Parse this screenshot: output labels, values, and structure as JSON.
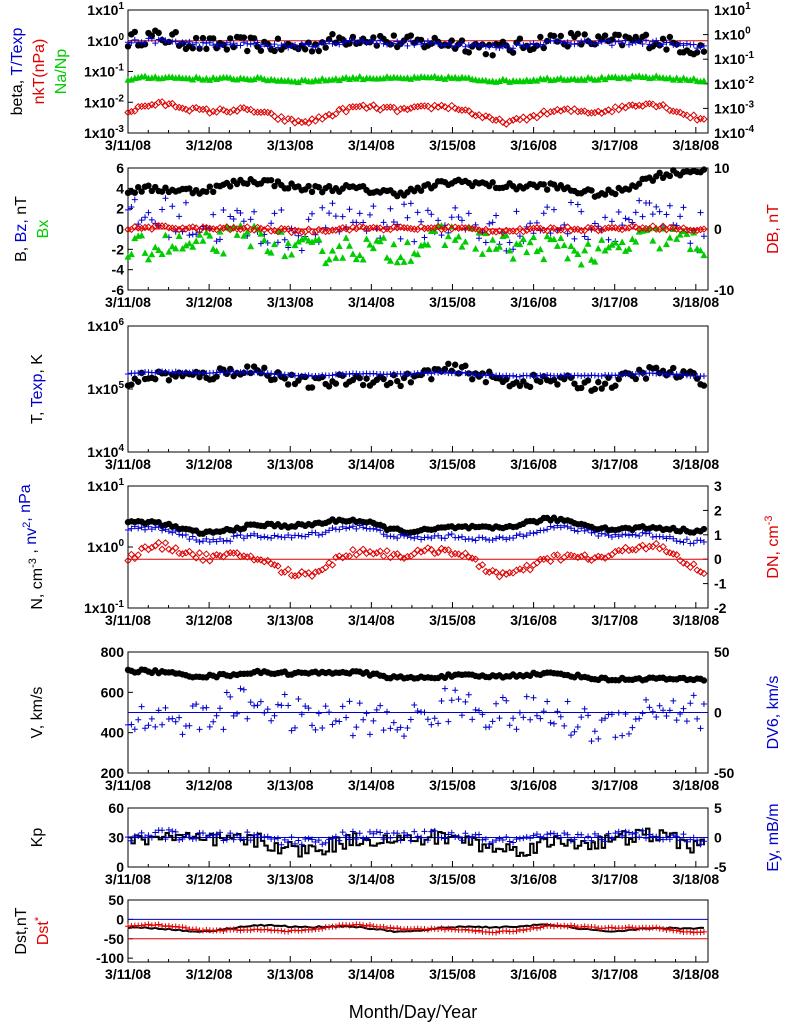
{
  "x_label": "Month/Day/Year",
  "dates": [
    "3/11/08",
    "3/12/08",
    "3/13/08",
    "3/14/08",
    "3/15/08",
    "3/16/08",
    "3/17/08",
    "3/18/08"
  ],
  "colors": {
    "black": "#000000",
    "blue": "#0000cc",
    "red": "#dd0000",
    "green": "#00cc00"
  },
  "chart_data": [
    {
      "id": "beta",
      "type": "scatter",
      "xlim": [
        0,
        7.15
      ],
      "left_axis": {
        "scale": "log",
        "range": [
          0.001,
          10
        ],
        "ticks": [
          "1x10-3",
          "1x10-2",
          "1x10-1",
          "1x100",
          "1x101"
        ]
      },
      "right_axis": {
        "scale": "log",
        "range": [
          0.0001,
          10
        ],
        "ticks": [
          "1x10-4",
          "1x10-3",
          "1x10-2",
          "1x10-1",
          "1x100",
          "1x101"
        ]
      },
      "ylabel_parts": [
        {
          "text": "beta, ",
          "color": "#000000"
        },
        {
          "text": "T/Texp",
          "color": "#0000cc"
        }
      ],
      "ylabel2_parts": [
        {
          "text": "nkT(nPa)",
          "color": "#dd0000"
        }
      ],
      "ylabel3_parts": [
        {
          "text": "Na/Np",
          "color": "#00cc00"
        }
      ],
      "reference_lines": [
        {
          "value": 1,
          "axis": "left",
          "color": "#dd0000"
        }
      ],
      "series": [
        {
          "name": "beta",
          "color": "#000000",
          "marker": "dot",
          "axis": "left",
          "base": 0.85,
          "log": true,
          "jitter": 0.25,
          "wave": 0.12
        },
        {
          "name": "T/Texp",
          "color": "#0000cc",
          "marker": "plus",
          "axis": "left",
          "base": 0.8,
          "log": true,
          "jitter": 0.08,
          "wave": 0.06
        },
        {
          "name": "Na/Np",
          "color": "#00cc00",
          "marker": "triangle",
          "axis": "right",
          "base": 0.016,
          "log": true,
          "jitter": 0.06,
          "wave": 0.05
        },
        {
          "name": "nkT(nPa)",
          "color": "#dd0000",
          "marker": "diamond",
          "axis": "right",
          "base": 0.0007,
          "log": true,
          "jitter": 0.1,
          "wave": 0.25
        }
      ]
    },
    {
      "id": "B",
      "type": "scatter",
      "xlim": [
        0,
        7.15
      ],
      "left_axis": {
        "scale": "linear",
        "range": [
          -6,
          6
        ],
        "ticks": [
          "-6",
          "-4",
          "-2",
          "0",
          "2",
          "4",
          "6"
        ]
      },
      "right_axis": {
        "scale": "linear",
        "range": [
          -10,
          10
        ],
        "ticks": [
          "-10",
          "0",
          "10"
        ]
      },
      "ylabel_parts": [
        {
          "text": "B, ",
          "color": "#000000"
        },
        {
          "text": "Bz, ",
          "color": "#0000cc"
        },
        {
          "text": "nT",
          "color": "#000000"
        }
      ],
      "ylabel2_parts": [
        {
          "text": "Bx",
          "color": "#00cc00"
        }
      ],
      "ylabel_right_parts": [
        {
          "text": "DB, nT",
          "color": "#dd0000"
        }
      ],
      "reference_lines": [
        {
          "value": 0,
          "axis": "left",
          "color": "#dd0000"
        }
      ],
      "series": [
        {
          "name": "B",
          "color": "#000000",
          "marker": "dot",
          "axis": "left",
          "base": 4.1,
          "jitter": 0.35,
          "wave": 0.4,
          "tail": 1.0
        },
        {
          "name": "Bz",
          "color": "#0000cc",
          "marker": "plus",
          "axis": "left",
          "base": 0.5,
          "jitter": 2.0,
          "wave": 0.5
        },
        {
          "name": "Bx",
          "color": "#00cc00",
          "marker": "triangle",
          "axis": "left",
          "base": -1.6,
          "jitter": 1.3,
          "wave": 0.6
        },
        {
          "name": "DB",
          "color": "#dd0000",
          "marker": "diamond",
          "axis": "right",
          "base": 0,
          "jitter": 0.3,
          "wave": 0.2
        }
      ]
    },
    {
      "id": "T",
      "type": "scatter",
      "xlim": [
        0,
        7.15
      ],
      "left_axis": {
        "scale": "log",
        "range": [
          10000,
          1000000
        ],
        "ticks": [
          "1x104",
          "1x105",
          "1x106"
        ]
      },
      "ylabel_parts": [
        {
          "text": "T, ",
          "color": "#000000"
        },
        {
          "text": "Texp",
          "color": "#0000cc"
        },
        {
          "text": ", K",
          "color": "#000000"
        }
      ],
      "series": [
        {
          "name": "T",
          "color": "#000000",
          "marker": "dot",
          "axis": "left",
          "base": 160000,
          "log": true,
          "jitter": 0.1,
          "wave": 0.08,
          "slope": -0.05
        },
        {
          "name": "Texp",
          "color": "#0000cc",
          "marker": "plus",
          "axis": "left",
          "base": 180000,
          "log": true,
          "jitter": 0.01,
          "wave": 0.02,
          "slope": -0.04
        }
      ]
    },
    {
      "id": "N",
      "type": "scatter",
      "xlim": [
        0,
        7.15
      ],
      "left_axis": {
        "scale": "log",
        "range": [
          0.1,
          10
        ],
        "ticks": [
          "1x10-1",
          "1x100",
          "1x101"
        ]
      },
      "right_axis": {
        "scale": "linear",
        "range": [
          -2,
          3
        ],
        "ticks": [
          "-2",
          "-1",
          "0",
          "1",
          "2",
          "3"
        ]
      },
      "ylabel_parts": [
        {
          "text": "N, cm",
          "color": "#000000"
        },
        {
          "text": "-3",
          "color": "#000000",
          "sup": true
        },
        {
          "text": " , ",
          "color": "#000000"
        },
        {
          "text": "nv",
          "color": "#0000cc"
        },
        {
          "text": "2",
          "color": "#0000cc",
          "sup": true
        },
        {
          "text": ", nPa",
          "color": "#0000cc"
        }
      ],
      "ylabel_right_parts": [
        {
          "text": "DN, cm",
          "color": "#dd0000"
        },
        {
          "text": "-3",
          "color": "#dd0000",
          "sup": true
        }
      ],
      "reference_lines": [
        {
          "value": 0,
          "axis": "right",
          "color": "#dd0000"
        }
      ],
      "series": [
        {
          "name": "N",
          "color": "#000000",
          "marker": "dot",
          "axis": "left",
          "base": 2.2,
          "log": true,
          "jitter": 0.03,
          "wave": 0.07,
          "tail": 0.3
        },
        {
          "name": "nv2",
          "color": "#0000cc",
          "marker": "plus",
          "axis": "left",
          "base": 1.6,
          "log": true,
          "jitter": 0.04,
          "wave": 0.08
        },
        {
          "name": "DN",
          "color": "#dd0000",
          "marker": "diamond",
          "axis": "right",
          "base": 0.0,
          "jitter": 0.15,
          "wave": 0.4
        }
      ]
    },
    {
      "id": "V",
      "type": "scatter",
      "xlim": [
        0,
        7.15
      ],
      "left_axis": {
        "scale": "linear",
        "range": [
          200,
          800
        ],
        "ticks": [
          "200",
          "400",
          "600",
          "800"
        ]
      },
      "right_axis": {
        "scale": "linear",
        "range": [
          -50,
          50
        ],
        "ticks": [
          "-50",
          "0",
          "50"
        ]
      },
      "ylabel_parts": [
        {
          "text": "V, km/s",
          "color": "#000000"
        }
      ],
      "ylabel_right_parts": [
        {
          "text": "DV6, km/s",
          "color": "#0000cc"
        }
      ],
      "reference_lines": [
        {
          "value": 0,
          "axis": "right",
          "color": "#0000cc"
        }
      ],
      "series": [
        {
          "name": "V",
          "color": "#000000",
          "marker": "dot",
          "axis": "left",
          "base": 700,
          "jitter": 8,
          "wave": 10,
          "slope": -30
        },
        {
          "name": "DV6",
          "color": "#0000cc",
          "marker": "plus",
          "axis": "right",
          "base": -2,
          "jitter": 15,
          "wave": 6
        }
      ]
    },
    {
      "id": "Kp",
      "type": "line",
      "xlim": [
        0,
        7.15
      ],
      "left_axis": {
        "scale": "linear",
        "range": [
          0,
          60
        ],
        "ticks": [
          "0",
          "30",
          "60"
        ]
      },
      "right_axis": {
        "scale": "linear",
        "range": [
          -5,
          5
        ],
        "ticks": [
          "-5",
          "0",
          "5"
        ]
      },
      "ylabel_parts": [
        {
          "text": "Kp",
          "color": "#000000"
        }
      ],
      "ylabel_right_parts": [
        {
          "text": "Ey, mB/m",
          "color": "#0000cc"
        }
      ],
      "reference_lines": [
        {
          "value": 0,
          "axis": "right",
          "color": "#0000cc"
        }
      ],
      "series": [
        {
          "name": "Kp",
          "color": "#000000",
          "marker": "step",
          "axis": "left",
          "base": 25,
          "jitter": 8,
          "wave": 5
        },
        {
          "name": "Ey",
          "color": "#0000cc",
          "marker": "plus",
          "axis": "right",
          "base": 0,
          "jitter": 0.8,
          "wave": 0.4
        }
      ]
    },
    {
      "id": "Dst",
      "type": "line",
      "xlim": [
        0,
        7.15
      ],
      "left_axis": {
        "scale": "linear",
        "range": [
          -110,
          50
        ],
        "ticks": [
          "-100",
          "-50",
          "0",
          "50"
        ]
      },
      "ylabel_parts": [
        {
          "text": "Dst,nT",
          "color": "#000000"
        }
      ],
      "ylabel2_parts": [
        {
          "text": "Dst",
          "color": "#dd0000"
        },
        {
          "text": "*",
          "color": "#dd0000",
          "sup": true
        }
      ],
      "reference_lines": [
        {
          "value": 0,
          "axis": "left",
          "color": "#0000cc"
        },
        {
          "value": -50,
          "axis": "left",
          "color": "#dd0000"
        }
      ],
      "series": [
        {
          "name": "Dst",
          "color": "#000000",
          "marker": "line",
          "axis": "left",
          "base": -22,
          "jitter": 2,
          "wave": 6
        },
        {
          "name": "Dst*",
          "color": "#dd0000",
          "marker": "plus",
          "axis": "left",
          "base": -24,
          "jitter": 2,
          "wave": 6
        }
      ]
    }
  ]
}
